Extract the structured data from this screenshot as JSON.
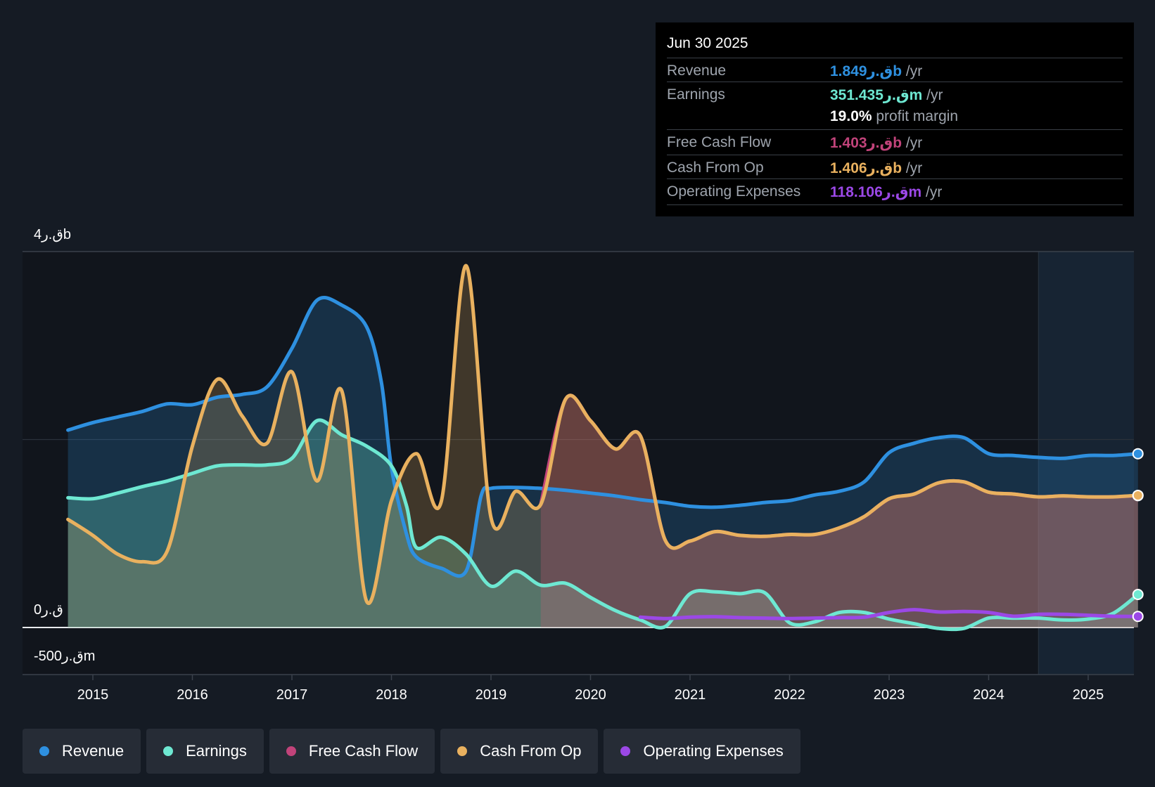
{
  "tooltip": {
    "date": "Jun 30 2025",
    "rows": [
      {
        "name": "Revenue",
        "value": "1.849ق.رb",
        "unit": " /yr",
        "color": "#2e90e0"
      },
      {
        "name": "Earnings",
        "value": "351.435ق.رm",
        "unit": " /yr",
        "color": "#6ee8d2"
      },
      {
        "name": "Free Cash Flow",
        "value": "1.403ق.رb",
        "unit": " /yr",
        "color": "#c1437a"
      },
      {
        "name": "Cash From Op",
        "value": "1.406ق.رb",
        "unit": " /yr",
        "color": "#e9b15f"
      },
      {
        "name": "Operating Expenses",
        "value": "118.106ق.رm",
        "unit": " /yr",
        "color": "#9b48e6"
      }
    ],
    "profit_margin_value": "19.0%",
    "profit_margin_label": " profit margin"
  },
  "legend": [
    {
      "label": "Revenue",
      "color": "#2e90e0"
    },
    {
      "label": "Earnings",
      "color": "#6ee8d2"
    },
    {
      "label": "Free Cash Flow",
      "color": "#c1437a"
    },
    {
      "label": "Cash From Op",
      "color": "#e9b15f"
    },
    {
      "label": "Operating Expenses",
      "color": "#9b48e6"
    }
  ],
  "chart_data": {
    "type": "area",
    "y_axis_labels": [
      "4ق.رb",
      "0ق.ر",
      "-500ق.رm"
    ],
    "ylim": [
      -500,
      4000
    ],
    "y_unit": "ق.رm",
    "xlim": [
      2014.75,
      2025.5
    ],
    "x_ticks": [
      "2015",
      "2016",
      "2017",
      "2018",
      "2019",
      "2020",
      "2021",
      "2022",
      "2023",
      "2024",
      "2025"
    ],
    "grid": "horizontal at 0, 2000, 4000",
    "forecast_shade_from": 2024.5,
    "series": [
      {
        "name": "Revenue",
        "color": "#2e90e0",
        "points": [
          [
            2014.75,
            2100
          ],
          [
            2015.0,
            2180
          ],
          [
            2015.25,
            2240
          ],
          [
            2015.5,
            2300
          ],
          [
            2015.75,
            2380
          ],
          [
            2016.0,
            2370
          ],
          [
            2016.25,
            2450
          ],
          [
            2016.5,
            2480
          ],
          [
            2016.75,
            2560
          ],
          [
            2017.0,
            2970
          ],
          [
            2017.25,
            3480
          ],
          [
            2017.5,
            3430
          ],
          [
            2017.75,
            3200
          ],
          [
            2017.9,
            2600
          ],
          [
            2018.0,
            1700
          ],
          [
            2018.15,
            1000
          ],
          [
            2018.25,
            750
          ],
          [
            2018.5,
            630
          ],
          [
            2018.75,
            600
          ],
          [
            2018.9,
            1400
          ],
          [
            2019.0,
            1480
          ],
          [
            2019.25,
            1490
          ],
          [
            2019.5,
            1480
          ],
          [
            2019.75,
            1460
          ],
          [
            2020.0,
            1430
          ],
          [
            2020.25,
            1400
          ],
          [
            2020.5,
            1360
          ],
          [
            2020.75,
            1330
          ],
          [
            2021.0,
            1290
          ],
          [
            2021.25,
            1280
          ],
          [
            2021.5,
            1300
          ],
          [
            2021.75,
            1330
          ],
          [
            2022.0,
            1350
          ],
          [
            2022.25,
            1410
          ],
          [
            2022.5,
            1450
          ],
          [
            2022.75,
            1550
          ],
          [
            2023.0,
            1860
          ],
          [
            2023.25,
            1960
          ],
          [
            2023.5,
            2020
          ],
          [
            2023.75,
            2020
          ],
          [
            2024.0,
            1850
          ],
          [
            2024.25,
            1830
          ],
          [
            2024.5,
            1810
          ],
          [
            2024.75,
            1800
          ],
          [
            2025.0,
            1830
          ],
          [
            2025.25,
            1830
          ],
          [
            2025.5,
            1849
          ]
        ]
      },
      {
        "name": "Earnings",
        "color": "#6ee8d2",
        "points": [
          [
            2014.75,
            1380
          ],
          [
            2015.0,
            1370
          ],
          [
            2015.25,
            1430
          ],
          [
            2015.5,
            1500
          ],
          [
            2015.75,
            1560
          ],
          [
            2016.0,
            1640
          ],
          [
            2016.25,
            1720
          ],
          [
            2016.5,
            1730
          ],
          [
            2016.75,
            1730
          ],
          [
            2017.0,
            1800
          ],
          [
            2017.25,
            2200
          ],
          [
            2017.5,
            2050
          ],
          [
            2017.75,
            1930
          ],
          [
            2018.0,
            1720
          ],
          [
            2018.15,
            1300
          ],
          [
            2018.25,
            850
          ],
          [
            2018.5,
            960
          ],
          [
            2018.75,
            780
          ],
          [
            2019.0,
            440
          ],
          [
            2019.25,
            600
          ],
          [
            2019.5,
            450
          ],
          [
            2019.75,
            470
          ],
          [
            2020.0,
            320
          ],
          [
            2020.25,
            180
          ],
          [
            2020.5,
            80
          ],
          [
            2020.75,
            10
          ],
          [
            2021.0,
            360
          ],
          [
            2021.25,
            380
          ],
          [
            2021.5,
            360
          ],
          [
            2021.75,
            370
          ],
          [
            2022.0,
            50
          ],
          [
            2022.25,
            60
          ],
          [
            2022.5,
            160
          ],
          [
            2022.75,
            160
          ],
          [
            2023.0,
            90
          ],
          [
            2023.25,
            40
          ],
          [
            2023.5,
            -10
          ],
          [
            2023.75,
            -10
          ],
          [
            2024.0,
            100
          ],
          [
            2024.25,
            100
          ],
          [
            2024.5,
            100
          ],
          [
            2024.75,
            80
          ],
          [
            2025.0,
            90
          ],
          [
            2025.25,
            150
          ],
          [
            2025.5,
            351.435
          ]
        ]
      },
      {
        "name": "Free Cash Flow",
        "color": "#c1437a",
        "points": [
          [
            2019.5,
            1310
          ],
          [
            2019.75,
            2430
          ],
          [
            2020.0,
            2200
          ],
          [
            2020.25,
            1900
          ],
          [
            2020.5,
            2040
          ],
          [
            2020.75,
            930
          ],
          [
            2021.0,
            920
          ],
          [
            2021.25,
            1020
          ],
          [
            2021.5,
            980
          ],
          [
            2021.75,
            970
          ],
          [
            2022.0,
            990
          ],
          [
            2022.25,
            990
          ],
          [
            2022.5,
            1060
          ],
          [
            2022.75,
            1180
          ],
          [
            2023.0,
            1370
          ],
          [
            2023.25,
            1420
          ],
          [
            2023.5,
            1540
          ],
          [
            2023.75,
            1550
          ],
          [
            2024.0,
            1440
          ],
          [
            2024.25,
            1420
          ],
          [
            2024.5,
            1390
          ],
          [
            2024.75,
            1400
          ],
          [
            2025.0,
            1390
          ],
          [
            2025.25,
            1390
          ],
          [
            2025.5,
            1403
          ]
        ]
      },
      {
        "name": "Cash From Op",
        "color": "#e9b15f",
        "points": [
          [
            2014.75,
            1150
          ],
          [
            2015.0,
            980
          ],
          [
            2015.25,
            780
          ],
          [
            2015.5,
            700
          ],
          [
            2015.75,
            820
          ],
          [
            2016.0,
            1930
          ],
          [
            2016.25,
            2640
          ],
          [
            2016.5,
            2250
          ],
          [
            2016.75,
            1960
          ],
          [
            2017.0,
            2720
          ],
          [
            2017.25,
            1560
          ],
          [
            2017.5,
            2520
          ],
          [
            2017.75,
            280
          ],
          [
            2018.0,
            1350
          ],
          [
            2018.25,
            1850
          ],
          [
            2018.5,
            1340
          ],
          [
            2018.75,
            3850
          ],
          [
            2019.0,
            1170
          ],
          [
            2019.25,
            1450
          ],
          [
            2019.5,
            1310
          ],
          [
            2019.75,
            2430
          ],
          [
            2020.0,
            2200
          ],
          [
            2020.25,
            1900
          ],
          [
            2020.5,
            2040
          ],
          [
            2020.75,
            930
          ],
          [
            2021.0,
            920
          ],
          [
            2021.25,
            1020
          ],
          [
            2021.5,
            980
          ],
          [
            2021.75,
            970
          ],
          [
            2022.0,
            990
          ],
          [
            2022.25,
            990
          ],
          [
            2022.5,
            1060
          ],
          [
            2022.75,
            1180
          ],
          [
            2023.0,
            1370
          ],
          [
            2023.25,
            1420
          ],
          [
            2023.5,
            1540
          ],
          [
            2023.75,
            1550
          ],
          [
            2024.0,
            1440
          ],
          [
            2024.25,
            1420
          ],
          [
            2024.5,
            1390
          ],
          [
            2024.75,
            1400
          ],
          [
            2025.0,
            1390
          ],
          [
            2025.25,
            1390
          ],
          [
            2025.5,
            1406
          ]
        ]
      },
      {
        "name": "Operating Expenses",
        "color": "#9b48e6",
        "points": [
          [
            2020.5,
            110
          ],
          [
            2020.75,
            95
          ],
          [
            2021.0,
            110
          ],
          [
            2021.25,
            115
          ],
          [
            2021.5,
            105
          ],
          [
            2021.75,
            100
          ],
          [
            2022.0,
            95
          ],
          [
            2022.25,
            100
          ],
          [
            2022.5,
            105
          ],
          [
            2022.75,
            110
          ],
          [
            2023.0,
            160
          ],
          [
            2023.25,
            190
          ],
          [
            2023.5,
            165
          ],
          [
            2023.75,
            170
          ],
          [
            2024.0,
            160
          ],
          [
            2024.25,
            120
          ],
          [
            2024.5,
            140
          ],
          [
            2024.75,
            140
          ],
          [
            2025.0,
            130
          ],
          [
            2025.25,
            120
          ],
          [
            2025.5,
            118.106
          ]
        ]
      }
    ]
  }
}
